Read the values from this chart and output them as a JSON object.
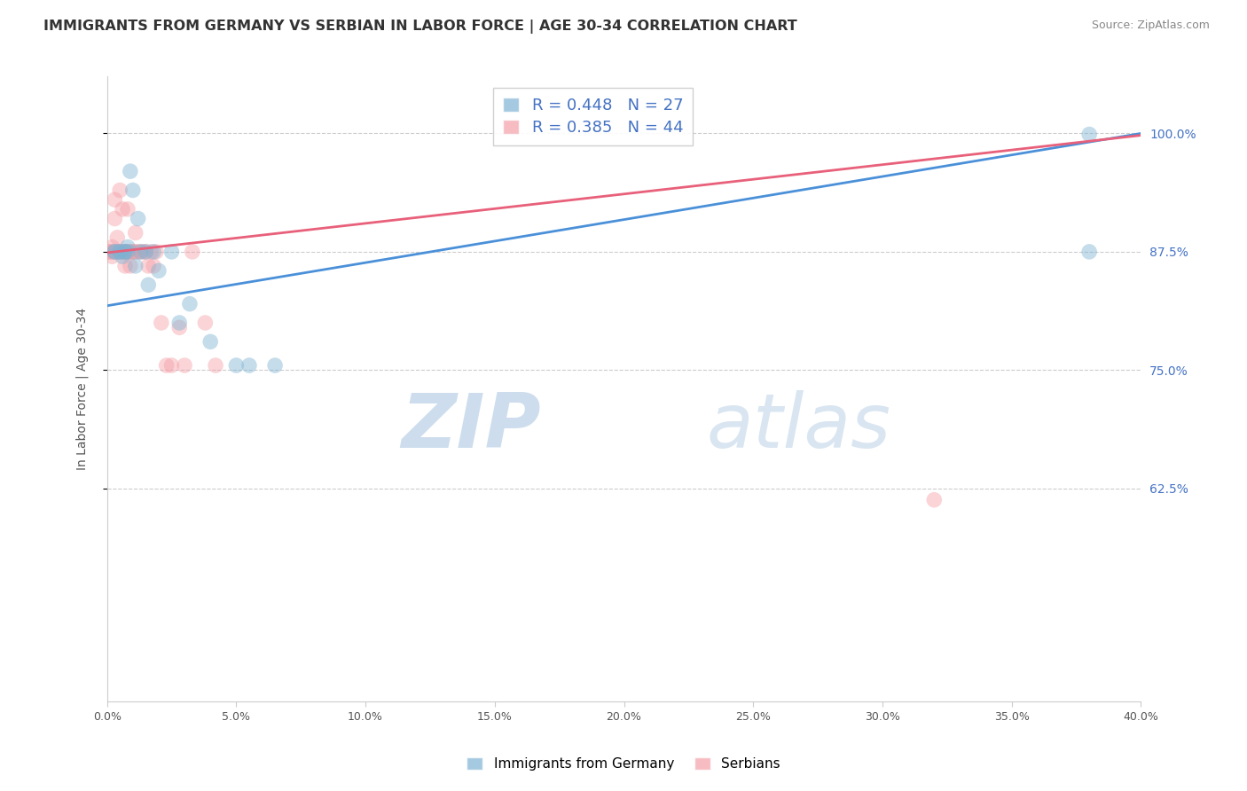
{
  "title": "IMMIGRANTS FROM GERMANY VS SERBIAN IN LABOR FORCE | AGE 30-34 CORRELATION CHART",
  "source": "Source: ZipAtlas.com",
  "ylabel": "In Labor Force | Age 30-34",
  "ytick_labels": [
    "100.0%",
    "87.5%",
    "75.0%",
    "62.5%"
  ],
  "ytick_values": [
    1.0,
    0.875,
    0.75,
    0.625
  ],
  "xmin": 0.0,
  "xmax": 0.4,
  "ymin": 0.4,
  "ymax": 1.06,
  "germany_R": 0.448,
  "germany_N": 27,
  "serbian_R": 0.385,
  "serbian_N": 44,
  "germany_color": "#7fb3d3",
  "serbian_color": "#f4a0a8",
  "germany_line_color": "#4a90d9",
  "serbian_line_color": "#e8607a",
  "legend_label_germany": "Immigrants from Germany",
  "legend_label_serbian": "Serbians",
  "watermark_zip": "ZIP",
  "watermark_atlas": "atlas",
  "germany_x": [
    0.003,
    0.005,
    0.006,
    0.007,
    0.008,
    0.008,
    0.009,
    0.01,
    0.011,
    0.012,
    0.013,
    0.015,
    0.016,
    0.018,
    0.02,
    0.025,
    0.028,
    0.032,
    0.04,
    0.05,
    0.055,
    0.065,
    0.38,
    0.38,
    0.003,
    0.005,
    0.007
  ],
  "germany_y": [
    0.875,
    0.875,
    0.87,
    0.875,
    0.88,
    0.875,
    0.96,
    0.94,
    0.86,
    0.91,
    0.875,
    0.875,
    0.84,
    0.875,
    0.855,
    0.875,
    0.8,
    0.82,
    0.78,
    0.755,
    0.755,
    0.755,
    0.999,
    0.875,
    0.875,
    0.875,
    0.875
  ],
  "serbian_x": [
    0.001,
    0.002,
    0.002,
    0.003,
    0.003,
    0.004,
    0.004,
    0.005,
    0.005,
    0.006,
    0.006,
    0.007,
    0.007,
    0.007,
    0.008,
    0.008,
    0.009,
    0.009,
    0.01,
    0.01,
    0.011,
    0.011,
    0.012,
    0.013,
    0.014,
    0.015,
    0.016,
    0.017,
    0.018,
    0.019,
    0.021,
    0.023,
    0.025,
    0.028,
    0.03,
    0.033,
    0.038,
    0.042,
    0.32,
    0.001,
    0.002,
    0.003,
    0.004,
    0.005
  ],
  "serbian_y": [
    0.875,
    0.88,
    0.87,
    0.93,
    0.91,
    0.89,
    0.875,
    0.94,
    0.875,
    0.92,
    0.875,
    0.875,
    0.86,
    0.875,
    0.92,
    0.875,
    0.875,
    0.86,
    0.875,
    0.875,
    0.895,
    0.875,
    0.875,
    0.875,
    0.875,
    0.875,
    0.86,
    0.875,
    0.86,
    0.875,
    0.8,
    0.755,
    0.755,
    0.795,
    0.755,
    0.875,
    0.8,
    0.755,
    0.613,
    0.875,
    0.875,
    0.875,
    0.875,
    0.875
  ],
  "germany_line_x0": 0.0,
  "germany_line_y0": 0.818,
  "germany_line_x1": 0.4,
  "germany_line_y1": 1.0,
  "serbian_line_x0": 0.0,
  "serbian_line_y0": 0.874,
  "serbian_line_x1": 0.4,
  "serbian_line_y1": 0.998
}
